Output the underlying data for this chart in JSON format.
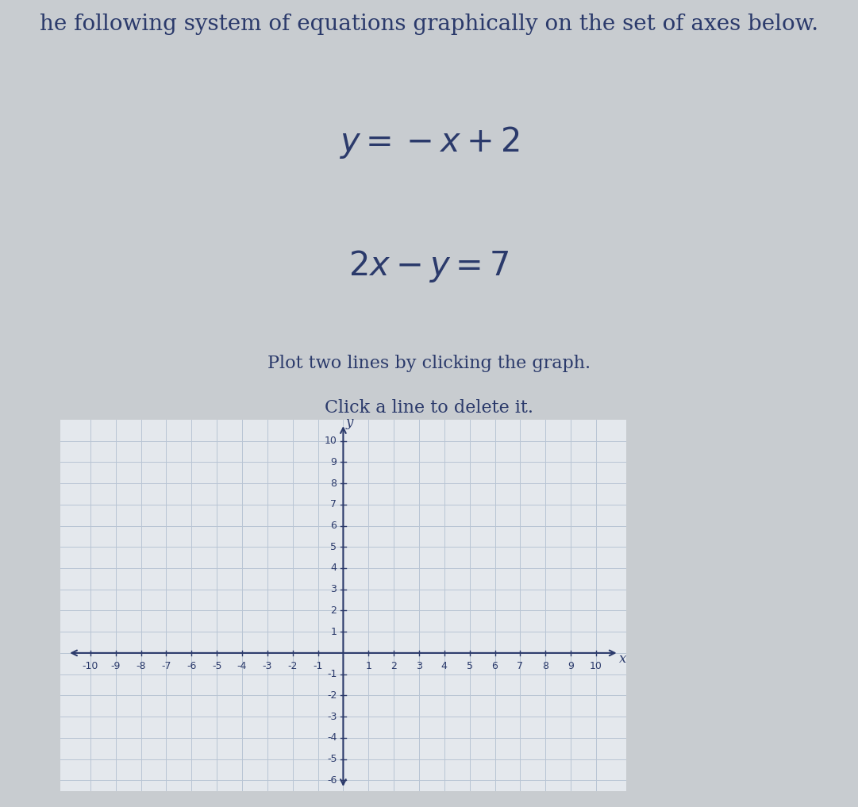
{
  "title_line1": "he following system of equations graphically on the set of axes below.",
  "eq1_latex": "$y = -x + 2$",
  "eq2_latex": "$2x - y = 7$",
  "instruction1": "Plot two lines by clicking the graph.",
  "instruction2": "Click a line to delete it.",
  "x_min": -10,
  "x_max": 10,
  "y_min": -6,
  "y_max": 10,
  "x_ticks": [
    -10,
    -9,
    -8,
    -7,
    -6,
    -5,
    -4,
    -3,
    -2,
    -1,
    1,
    2,
    3,
    4,
    5,
    6,
    7,
    8,
    9,
    10
  ],
  "y_ticks": [
    -6,
    -5,
    -4,
    -3,
    -2,
    -1,
    1,
    2,
    3,
    4,
    5,
    6,
    7,
    8,
    9,
    10
  ],
  "background_color": "#c8ccd0",
  "grid_color": "#b8c4d4",
  "axis_color": "#2b3a6b",
  "text_color": "#2b3a6b",
  "plot_bg_color": "#e4e8ed",
  "font_size_title": 20,
  "font_size_eq": 30,
  "font_size_instr": 16,
  "font_size_tick": 9,
  "font_size_axlabel": 12
}
